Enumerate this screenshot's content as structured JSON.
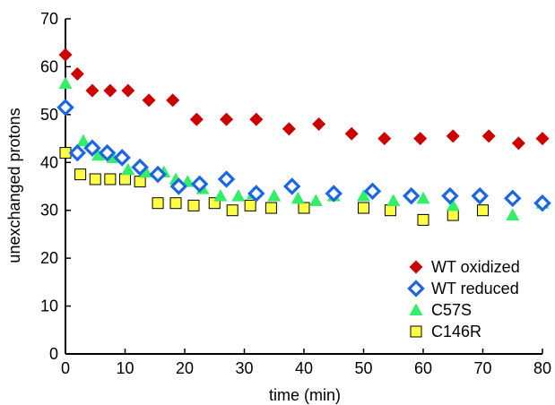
{
  "chart_data": {
    "type": "scatter",
    "xlabel": "time (min)",
    "ylabel": "unexchanged protons",
    "xlim": [
      0,
      80
    ],
    "ylim": [
      0,
      70
    ],
    "xticks": [
      "0",
      "10",
      "20",
      "30",
      "40",
      "50",
      "60",
      "70",
      "80"
    ],
    "yticks": [
      "0",
      "10",
      "20",
      "30",
      "40",
      "50",
      "60",
      "70"
    ],
    "grid": false,
    "legend_position": "bottom-right",
    "series": [
      {
        "name": "WT oxidized",
        "marker": "diamond",
        "color": "#cc0000",
        "points": [
          [
            0,
            62.5
          ],
          [
            2,
            58.5
          ],
          [
            4.5,
            55
          ],
          [
            7.5,
            55
          ],
          [
            10.5,
            55
          ],
          [
            14,
            53
          ],
          [
            18,
            53
          ],
          [
            22,
            49
          ],
          [
            27,
            49
          ],
          [
            32,
            49
          ],
          [
            37.5,
            47
          ],
          [
            42.5,
            48
          ],
          [
            48,
            46
          ],
          [
            53.5,
            45
          ],
          [
            59.5,
            45
          ],
          [
            65,
            45.5
          ],
          [
            71,
            45.5
          ],
          [
            76,
            44
          ],
          [
            80,
            45
          ]
        ]
      },
      {
        "name": "WT reduced",
        "marker": "open-diamond",
        "color": "#1a66e6",
        "points": [
          [
            0,
            51.5
          ],
          [
            2,
            42
          ],
          [
            4.5,
            43
          ],
          [
            7,
            42
          ],
          [
            9.5,
            41
          ],
          [
            12.5,
            39
          ],
          [
            15.5,
            37.5
          ],
          [
            19,
            35
          ],
          [
            22.5,
            35.5
          ],
          [
            27,
            36.5
          ],
          [
            32,
            33.5
          ],
          [
            38,
            35
          ],
          [
            45,
            33.5
          ],
          [
            51.5,
            34
          ],
          [
            58,
            33
          ],
          [
            64.5,
            33
          ],
          [
            69.5,
            33
          ],
          [
            75,
            32.5
          ],
          [
            80,
            31.5
          ]
        ]
      },
      {
        "name": "C57S",
        "marker": "triangle",
        "color": "#33ee66",
        "points": [
          [
            0,
            56.5
          ],
          [
            3,
            44.5
          ],
          [
            5.5,
            41.5
          ],
          [
            8,
            41
          ],
          [
            10.5,
            38.5
          ],
          [
            13.5,
            38
          ],
          [
            16.5,
            38
          ],
          [
            18.5,
            36.5
          ],
          [
            20.5,
            36
          ],
          [
            23,
            34.5
          ],
          [
            26,
            33
          ],
          [
            29,
            33
          ],
          [
            31.5,
            33.5
          ],
          [
            35,
            33
          ],
          [
            39,
            32.5
          ],
          [
            42,
            32
          ],
          [
            45,
            33
          ],
          [
            50,
            33
          ],
          [
            55,
            32
          ],
          [
            60,
            32.5
          ],
          [
            65,
            31
          ],
          [
            75,
            29
          ],
          [
            80,
            31.5
          ]
        ]
      },
      {
        "name": "C146R",
        "marker": "square",
        "color": "#ffff44",
        "points": [
          [
            0,
            42
          ],
          [
            2.5,
            37.5
          ],
          [
            5,
            36.5
          ],
          [
            7.5,
            36.5
          ],
          [
            10,
            36.5
          ],
          [
            12.5,
            36
          ],
          [
            15.5,
            31.5
          ],
          [
            18.5,
            31.5
          ],
          [
            21.5,
            31
          ],
          [
            25,
            31.5
          ],
          [
            28,
            30
          ],
          [
            31,
            31
          ],
          [
            34.5,
            30.5
          ],
          [
            40,
            30.5
          ],
          [
            50,
            30.5
          ],
          [
            54.5,
            30
          ],
          [
            60,
            28
          ],
          [
            65,
            29
          ],
          [
            70,
            30
          ]
        ]
      }
    ]
  }
}
